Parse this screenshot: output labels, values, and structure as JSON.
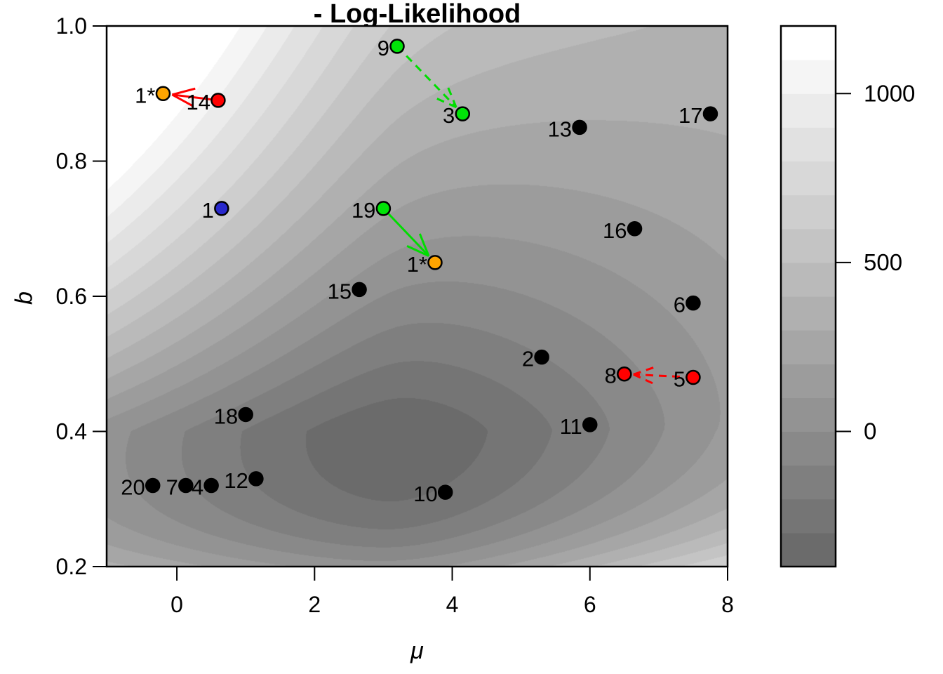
{
  "title": "- Log-Likelihood",
  "axes": {
    "xlabel": "μ",
    "ylabel": "b",
    "x_ticks": [
      0,
      2,
      4,
      6,
      8
    ],
    "y_ticks": [
      0.2,
      0.4,
      0.6,
      0.8,
      1.0
    ],
    "y_tick_labels": [
      "0.2",
      "0.4",
      "0.6",
      "0.8",
      "1.0"
    ],
    "x_range": [
      -1.02,
      8.0
    ],
    "y_range": [
      0.2,
      1.0
    ]
  },
  "colorbar": {
    "tick_values": [
      0,
      500,
      1000
    ],
    "tick_labels": [
      "0",
      "500",
      "1000"
    ],
    "level_min": -400,
    "level_max": 1200,
    "level_step": 100,
    "n_bands": 16,
    "gray_start": 0.42,
    "gray_end": 1.0
  },
  "chart_data": {
    "type": "heatmap",
    "subtype": "filled-contour-of-negative-log-likelihood",
    "title": "- Log-Likelihood",
    "xlabel": "μ",
    "ylabel": "b",
    "xlim": [
      -1.02,
      8.0
    ],
    "ylim": [
      0.2,
      1.0
    ],
    "z_range": [
      -400,
      1200
    ],
    "z_step": 100,
    "legend_position": "right-colorbar",
    "surface_minimum": {
      "mu": 3.2,
      "b": 0.4,
      "z": -380
    },
    "surface_model": {
      "description": "z = z0 + A*u^2/(1+|u|/L) + (w>=0 ? Bpos*w^p : Bneg*w^2) + C*(w>=0 ? 1 : s_neg)*u*w ; u = mu-3.2 ; w = ln(b/0.4)",
      "z0": -380,
      "A": 80,
      "L": 1.8,
      "Bpos": 1071,
      "p": 1.2,
      "Bneg": 900,
      "C": -160,
      "s_neg": 0.3
    },
    "points": [
      {
        "label": "1*",
        "mu": -0.2,
        "b": 0.9,
        "color": "#ffa500"
      },
      {
        "label": "14",
        "mu": 0.6,
        "b": 0.89,
        "color": "#ff0000"
      },
      {
        "label": "9",
        "mu": 3.2,
        "b": 0.97,
        "color": "#00e308"
      },
      {
        "label": "3",
        "mu": 4.15,
        "b": 0.87,
        "color": "#00e308"
      },
      {
        "label": "1",
        "mu": 0.65,
        "b": 0.73,
        "color": "#2929cc"
      },
      {
        "label": "19",
        "mu": 3.0,
        "b": 0.73,
        "color": "#00e308"
      },
      {
        "label": "1*",
        "mu": 3.75,
        "b": 0.65,
        "color": "#ffa500"
      },
      {
        "label": "15",
        "mu": 2.65,
        "b": 0.61,
        "color": "#000000"
      },
      {
        "label": "13",
        "mu": 5.85,
        "b": 0.85,
        "color": "#000000"
      },
      {
        "label": "17",
        "mu": 7.75,
        "b": 0.87,
        "color": "#000000"
      },
      {
        "label": "16",
        "mu": 6.65,
        "b": 0.7,
        "color": "#000000"
      },
      {
        "label": "6",
        "mu": 7.5,
        "b": 0.59,
        "color": "#000000"
      },
      {
        "label": "2",
        "mu": 5.3,
        "b": 0.51,
        "color": "#000000"
      },
      {
        "label": "8",
        "mu": 6.5,
        "b": 0.485,
        "color": "#ff0000"
      },
      {
        "label": "5",
        "mu": 7.5,
        "b": 0.48,
        "color": "#ff0000"
      },
      {
        "label": "11",
        "mu": 6.0,
        "b": 0.41,
        "color": "#000000"
      },
      {
        "label": "18",
        "mu": 1.0,
        "b": 0.425,
        "color": "#000000"
      },
      {
        "label": "12",
        "mu": 1.15,
        "b": 0.33,
        "color": "#000000"
      },
      {
        "label": "10",
        "mu": 3.9,
        "b": 0.31,
        "color": "#000000"
      },
      {
        "label": "20",
        "mu": -0.35,
        "b": 0.32,
        "color": "#000000"
      },
      {
        "label": "7",
        "mu": 0.13,
        "b": 0.32,
        "color": "#000000"
      },
      {
        "label": "4",
        "mu": 0.5,
        "b": 0.32,
        "color": "#000000"
      }
    ],
    "arrows": [
      {
        "from": {
          "mu": 0.6,
          "b": 0.89
        },
        "to": {
          "mu": -0.2,
          "b": 0.9
        },
        "color": "#ff0000",
        "style": "solid"
      },
      {
        "from": {
          "mu": 3.2,
          "b": 0.97
        },
        "to": {
          "mu": 4.15,
          "b": 0.87
        },
        "color": "#00dd00",
        "style": "dashed"
      },
      {
        "from": {
          "mu": 3.0,
          "b": 0.73
        },
        "to": {
          "mu": 3.75,
          "b": 0.65
        },
        "color": "#00dd00",
        "style": "solid"
      },
      {
        "from": {
          "mu": 7.5,
          "b": 0.48
        },
        "to": {
          "mu": 6.5,
          "b": 0.485
        },
        "color": "#ff0000",
        "style": "dashed"
      }
    ]
  }
}
